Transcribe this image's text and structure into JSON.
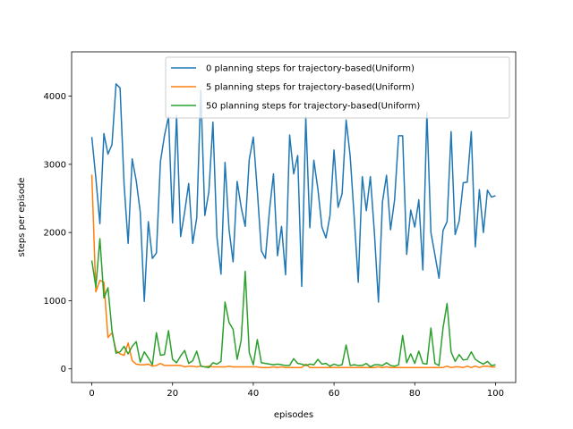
{
  "chart_data": {
    "type": "line",
    "title": "",
    "xlabel": "episodes",
    "ylabel": "steps per episode",
    "xlim": [
      -5,
      105
    ],
    "ylim": [
      -200,
      4650
    ],
    "xticks": [
      0,
      20,
      40,
      60,
      80,
      100
    ],
    "yticks": [
      0,
      1000,
      2000,
      3000,
      4000
    ],
    "grid": false,
    "legend_position": "top-right",
    "series": [
      {
        "name": "0 planning steps for trajectory-based(Uniform)",
        "color": "#1f77b4",
        "values": [
          3400,
          2800,
          2130,
          3450,
          3150,
          3290,
          4180,
          4120,
          2700,
          1840,
          3080,
          2760,
          2300,
          990,
          2160,
          1620,
          1700,
          3040,
          3420,
          3700,
          2140,
          3720,
          1940,
          2300,
          2720,
          1840,
          2220,
          4080,
          2250,
          2600,
          3620,
          1930,
          1390,
          3030,
          2040,
          1570,
          2750,
          2370,
          2090,
          3070,
          3400,
          2610,
          1730,
          1620,
          2320,
          2860,
          1660,
          2090,
          1380,
          3430,
          2860,
          3130,
          1210,
          3700,
          2070,
          3060,
          2640,
          2080,
          1920,
          2250,
          3210,
          2370,
          2570,
          3650,
          3120,
          2220,
          1270,
          2820,
          2320,
          2820,
          2000,
          980,
          2450,
          2840,
          2040,
          2480,
          3420,
          3420,
          1680,
          2330,
          2080,
          2480,
          1450,
          3760,
          2000,
          1670,
          1330,
          2030,
          2160,
          3480,
          1970,
          2170,
          2730,
          2740,
          3480,
          1790,
          2630,
          2000,
          2620,
          2520,
          2540
        ]
      },
      {
        "name": "5 planning steps for trajectory-based(Uniform)",
        "color": "#ff7f0e",
        "values": [
          2850,
          1130,
          1300,
          1270,
          460,
          530,
          270,
          220,
          200,
          380,
          120,
          70,
          60,
          60,
          70,
          40,
          50,
          80,
          50,
          50,
          50,
          50,
          50,
          30,
          40,
          40,
          30,
          40,
          30,
          40,
          30,
          30,
          30,
          30,
          40,
          30,
          30,
          30,
          30,
          30,
          30,
          30,
          20,
          20,
          20,
          30,
          20,
          30,
          20,
          20,
          20,
          20,
          20,
          70,
          20,
          20,
          20,
          20,
          20,
          20,
          20,
          20,
          20,
          20,
          20,
          20,
          20,
          20,
          20,
          20,
          20,
          30,
          20,
          30,
          20,
          20,
          20,
          20,
          20,
          20,
          20,
          20,
          20,
          20,
          20,
          20,
          20,
          20,
          40,
          20,
          30,
          30,
          20,
          40,
          20,
          40,
          20,
          40,
          40,
          30,
          30
        ]
      },
      {
        "name": "50 planning steps for trajectory-based(Uniform)",
        "color": "#2ca02c",
        "values": [
          1590,
          1200,
          1910,
          1040,
          1190,
          560,
          230,
          250,
          330,
          220,
          330,
          400,
          100,
          250,
          160,
          60,
          530,
          200,
          210,
          560,
          140,
          90,
          190,
          270,
          80,
          120,
          260,
          40,
          30,
          20,
          90,
          70,
          110,
          980,
          680,
          580,
          140,
          420,
          1430,
          240,
          60,
          430,
          90,
          80,
          70,
          60,
          70,
          60,
          50,
          50,
          150,
          80,
          70,
          50,
          70,
          60,
          140,
          70,
          80,
          40,
          70,
          50,
          60,
          350,
          50,
          60,
          50,
          50,
          80,
          30,
          60,
          60,
          50,
          90,
          50,
          40,
          60,
          490,
          90,
          220,
          80,
          260,
          80,
          70,
          600,
          80,
          50,
          600,
          960,
          250,
          110,
          210,
          130,
          140,
          250,
          140,
          100,
          70,
          110,
          50,
          60
        ]
      }
    ]
  }
}
